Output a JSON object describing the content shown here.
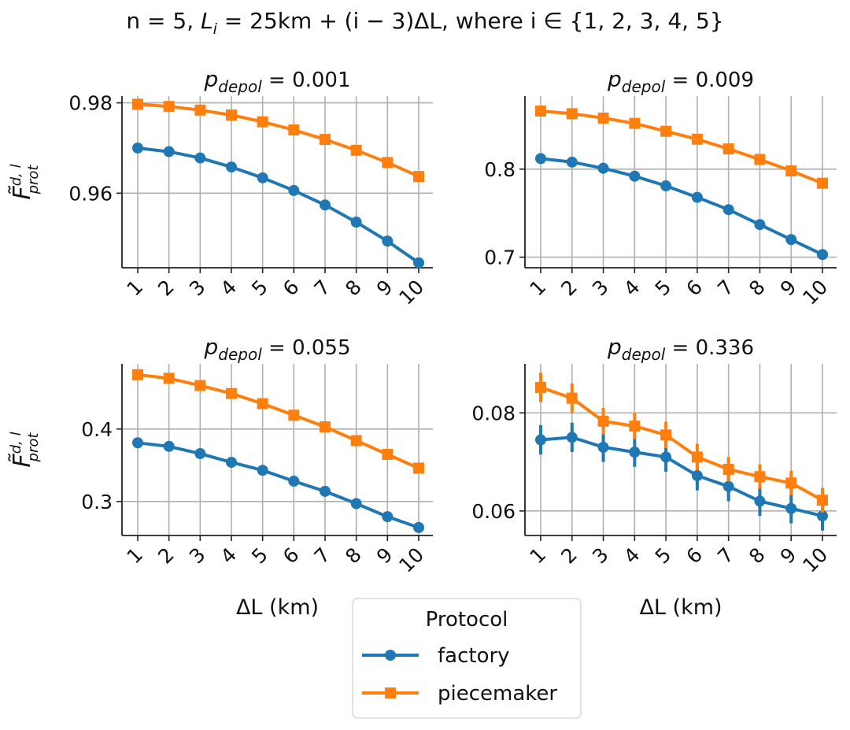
{
  "chart_data": {
    "suptitle": {
      "prefix": "n = 5, ",
      "li_label": "L",
      "li_sub": "i",
      "formula": " = 25km + (i − 3)ΔL",
      "suffix": ", where i ∈ {1, 2, 3, 4, 5}"
    },
    "shared": {
      "x": [
        1,
        2,
        3,
        4,
        5,
        6,
        7,
        8,
        9,
        10
      ],
      "xtick_labels": [
        "1",
        "2",
        "3",
        "4",
        "5",
        "6",
        "7",
        "8",
        "9",
        "10"
      ],
      "xlabel": "ΔL (km)",
      "ylabel": {
        "main": "F̃",
        "sup": "d, l",
        "sub": "prot"
      },
      "title_param": {
        "main": "p",
        "sub": "depol"
      }
    },
    "legend": {
      "title": "Protocol",
      "entries": [
        {
          "name": "factory",
          "color": "#1f77b4",
          "marker": "circle"
        },
        {
          "name": "piecemaker",
          "color": "#ff7f0e",
          "marker": "square"
        }
      ]
    },
    "panels": [
      {
        "type": "line",
        "title_value": " = 0.001",
        "ylim": [
          0.9435,
          0.9815
        ],
        "yticks": [
          0.96,
          0.98
        ],
        "ytick_labels": [
          "0.96",
          "0.98"
        ],
        "show_ylabel": true,
        "show_xlabel": false,
        "series": [
          {
            "name": "factory",
            "values": [
              0.97,
              0.9692,
              0.9678,
              0.9658,
              0.9634,
              0.9606,
              0.9574,
              0.9536,
              0.9494,
              0.9446
            ],
            "errors": [
              0.0003,
              0.0003,
              0.0003,
              0.0003,
              0.0003,
              0.0003,
              0.0003,
              0.0003,
              0.0003,
              0.0003
            ]
          },
          {
            "name": "piecemaker",
            "values": [
              0.9797,
              0.9792,
              0.9784,
              0.9773,
              0.9758,
              0.974,
              0.9719,
              0.9695,
              0.9668,
              0.9637
            ],
            "errors": [
              0.0003,
              0.0003,
              0.0003,
              0.0003,
              0.0003,
              0.0003,
              0.0003,
              0.0003,
              0.0003,
              0.0003
            ]
          }
        ]
      },
      {
        "type": "line",
        "title_value": " = 0.009",
        "ylim": [
          0.688,
          0.883
        ],
        "yticks": [
          0.7,
          0.8
        ],
        "ytick_labels": [
          "0.7",
          "0.8"
        ],
        "show_ylabel": false,
        "show_xlabel": false,
        "series": [
          {
            "name": "factory",
            "values": [
              0.812,
              0.808,
              0.801,
              0.792,
              0.781,
              0.768,
              0.754,
              0.737,
              0.72,
              0.703
            ],
            "errors": [
              0.003,
              0.003,
              0.003,
              0.003,
              0.003,
              0.003,
              0.004,
              0.004,
              0.004,
              0.005
            ]
          },
          {
            "name": "piecemaker",
            "values": [
              0.866,
              0.863,
              0.858,
              0.852,
              0.843,
              0.834,
              0.823,
              0.811,
              0.798,
              0.784
            ],
            "errors": [
              0.002,
              0.002,
              0.002,
              0.002,
              0.002,
              0.002,
              0.003,
              0.003,
              0.003,
              0.003
            ]
          }
        ]
      },
      {
        "type": "line",
        "title_value": " = 0.055",
        "ylim": [
          0.253,
          0.49
        ],
        "yticks": [
          0.3,
          0.4
        ],
        "ytick_labels": [
          "0.3",
          "0.4"
        ],
        "show_ylabel": true,
        "show_xlabel": true,
        "series": [
          {
            "name": "factory",
            "values": [
              0.381,
              0.376,
              0.366,
              0.354,
              0.343,
              0.328,
              0.314,
              0.297,
              0.279,
              0.264
            ],
            "errors": [
              0.004,
              0.004,
              0.004,
              0.004,
              0.004,
              0.004,
              0.004,
              0.004,
              0.004,
              0.004
            ]
          },
          {
            "name": "piecemaker",
            "values": [
              0.475,
              0.47,
              0.46,
              0.449,
              0.435,
              0.419,
              0.403,
              0.384,
              0.365,
              0.346
            ],
            "errors": [
              0.004,
              0.004,
              0.004,
              0.004,
              0.004,
              0.004,
              0.004,
              0.004,
              0.004,
              0.004
            ]
          }
        ]
      },
      {
        "type": "line",
        "title_value": " = 0.336",
        "ylim": [
          0.055,
          0.09
        ],
        "yticks": [
          0.06,
          0.08
        ],
        "ytick_labels": [
          "0.06",
          "0.08"
        ],
        "show_ylabel": false,
        "show_xlabel": true,
        "series": [
          {
            "name": "factory",
            "values": [
              0.0745,
              0.075,
              0.073,
              0.072,
              0.071,
              0.0672,
              0.065,
              0.062,
              0.0605,
              0.059
            ],
            "errors": [
              0.003,
              0.003,
              0.003,
              0.003,
              0.003,
              0.003,
              0.003,
              0.003,
              0.003,
              0.003
            ]
          },
          {
            "name": "piecemaker",
            "values": [
              0.0852,
              0.083,
              0.0783,
              0.0773,
              0.0755,
              0.071,
              0.0685,
              0.067,
              0.0657,
              0.0622
            ],
            "errors": [
              0.003,
              0.003,
              0.0027,
              0.0027,
              0.0027,
              0.0027,
              0.0025,
              0.0025,
              0.0025,
              0.0025
            ]
          }
        ]
      }
    ]
  }
}
